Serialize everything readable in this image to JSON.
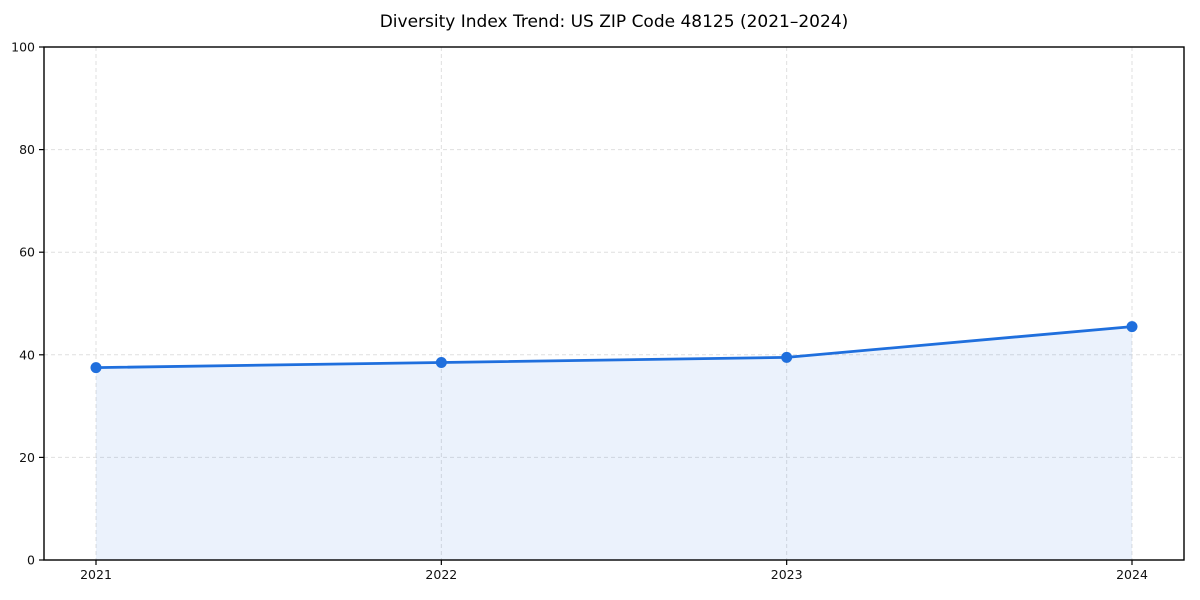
{
  "chart_data": {
    "type": "line",
    "title": "Diversity Index Trend: US ZIP Code 48125 (2021–2024)",
    "categories": [
      "2021",
      "2022",
      "2023",
      "2024"
    ],
    "series": [
      {
        "name": "Diversity Index",
        "values": [
          37.5,
          38.5,
          39.5,
          45.5
        ]
      }
    ],
    "xlabel": "",
    "ylabel": "",
    "ylim": [
      0,
      100
    ],
    "yticks": [
      0,
      20,
      40,
      60,
      80,
      100
    ],
    "grid": true,
    "grid_style": "dashed",
    "legend": false,
    "area_fill": true,
    "marker": "circle",
    "colors": {
      "line": "#1f6fdd",
      "marker": "#1f6fdd",
      "fill": "#1f6fdd",
      "fill_opacity": 0.09,
      "grid": "#dfdfdf",
      "axis": "#000000",
      "text": "#111111",
      "background": "#ffffff"
    }
  }
}
